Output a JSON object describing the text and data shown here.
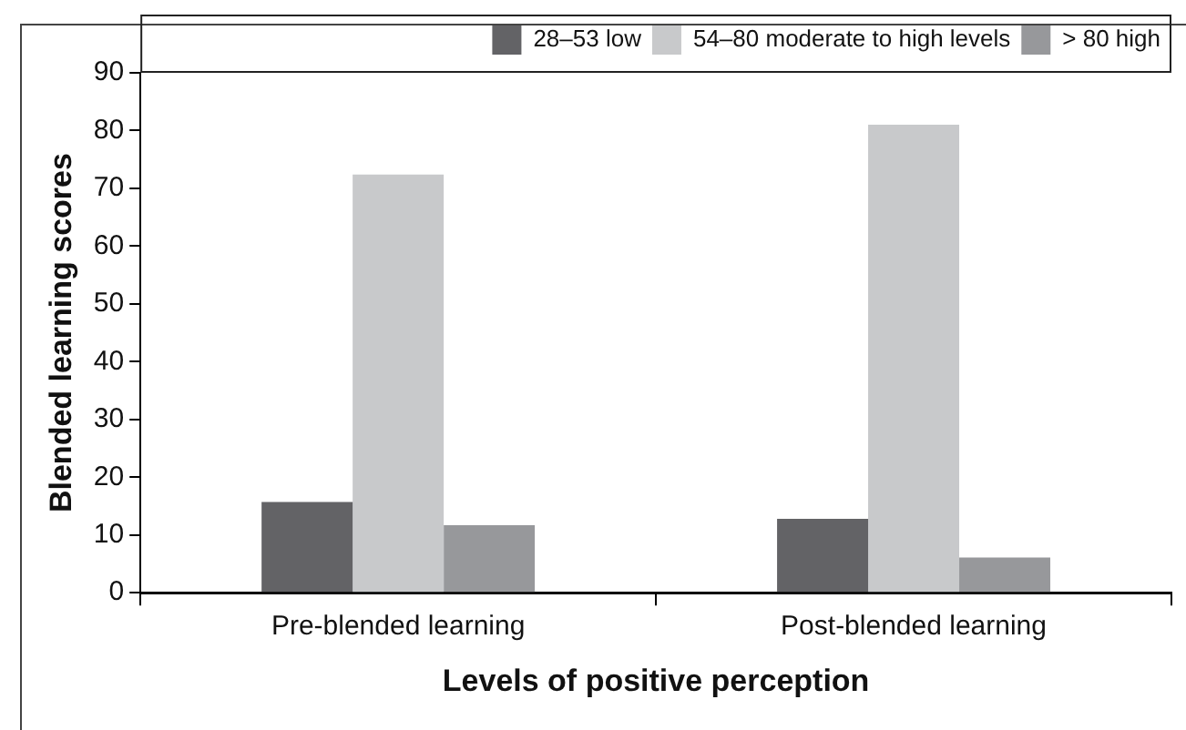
{
  "chart_data": {
    "type": "bar",
    "xlabel": "Levels of positive perception",
    "ylabel": "Blended learning scores",
    "categories": [
      "Pre-blended learning",
      "Post-blended learning"
    ],
    "series": [
      {
        "name": "28–53 low",
        "color": "#636366",
        "values": [
          15.7,
          12.8
        ]
      },
      {
        "name": "54–80 moderate to high levels",
        "color": "#c8c9cb",
        "values": [
          72.4,
          81
        ]
      },
      {
        "name": "> 80 high",
        "color": "#97989b",
        "values": [
          11.7,
          6.1
        ]
      }
    ],
    "ylim": [
      0,
      90
    ],
    "yticks": [
      0,
      10,
      20,
      30,
      40,
      50,
      60,
      70,
      80,
      90
    ],
    "grid": false,
    "legend": "top right"
  }
}
